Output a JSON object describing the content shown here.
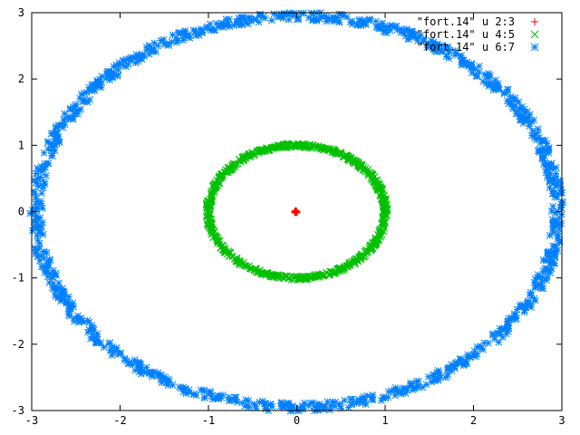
{
  "chart_data": {
    "type": "scatter",
    "title": "",
    "xlabel": "",
    "ylabel": "",
    "xlim": [
      -3,
      3
    ],
    "ylim": [
      -3,
      3
    ],
    "grid": false,
    "legend_position": "top-right",
    "x_ticks": [
      -3,
      -2,
      -1,
      0,
      1,
      2,
      3
    ],
    "y_ticks": [
      -3,
      -2,
      -1,
      0,
      1,
      2,
      3
    ],
    "x_tick_labels": [
      "-3",
      "-2",
      "-1",
      "0",
      "1",
      "2",
      "3"
    ],
    "y_tick_labels": [
      "-3",
      "-2",
      "-1",
      "0",
      "1",
      "2",
      "3"
    ],
    "series": [
      {
        "name": "\"fort.14\" u 2:3",
        "color": "#ff0000",
        "marker": "plus",
        "points": [
          [
            -0.02,
            0.0
          ],
          [
            -0.01,
            0.01
          ],
          [
            0.0,
            -0.01
          ],
          [
            -0.02,
            -0.01
          ],
          [
            -0.01,
            0.0
          ]
        ]
      },
      {
        "name": "\"fort.14\" u 4:5",
        "color": "#00c000",
        "marker": "cross",
        "shape": "ring",
        "ring": {
          "center": [
            0,
            0
          ],
          "radius": 1.0,
          "jitter": 0.03
        },
        "points": [
          [
            1.0,
            0.0
          ],
          [
            0.98,
            0.19
          ],
          [
            0.93,
            0.37
          ],
          [
            0.85,
            0.53
          ],
          [
            0.73,
            0.68
          ],
          [
            0.59,
            0.81
          ],
          [
            0.43,
            0.9
          ],
          [
            0.26,
            0.97
          ],
          [
            0.08,
            1.0
          ],
          [
            -0.1,
            0.99
          ],
          [
            -0.27,
            0.96
          ],
          [
            -0.44,
            0.9
          ],
          [
            -0.59,
            0.81
          ],
          [
            -0.73,
            0.68
          ],
          [
            -0.85,
            0.53
          ],
          [
            -0.93,
            0.37
          ],
          [
            -0.98,
            0.19
          ],
          [
            -1.0,
            0.0
          ],
          [
            -0.98,
            -0.19
          ],
          [
            -0.93,
            -0.37
          ],
          [
            -0.85,
            -0.53
          ],
          [
            -0.73,
            -0.68
          ],
          [
            -0.59,
            -0.81
          ],
          [
            -0.43,
            -0.9
          ],
          [
            -0.26,
            -0.97
          ],
          [
            -0.08,
            -1.0
          ],
          [
            0.1,
            -0.99
          ],
          [
            0.27,
            -0.96
          ],
          [
            0.44,
            -0.9
          ],
          [
            0.59,
            -0.81
          ],
          [
            0.73,
            -0.68
          ],
          [
            0.85,
            -0.53
          ],
          [
            0.93,
            -0.37
          ],
          [
            0.98,
            -0.19
          ]
        ]
      },
      {
        "name": "\"fort.14\" u 6:7",
        "color": "#0080ff",
        "marker": "star",
        "shape": "ring",
        "ring": {
          "center": [
            0,
            0
          ],
          "radius": 2.95,
          "jitter": 0.07
        },
        "points": [
          [
            2.95,
            0.0
          ],
          [
            2.91,
            0.48
          ],
          [
            2.8,
            0.93
          ],
          [
            2.61,
            1.37
          ],
          [
            2.35,
            1.78
          ],
          [
            2.02,
            2.15
          ],
          [
            1.64,
            2.45
          ],
          [
            1.22,
            2.69
          ],
          [
            0.76,
            2.85
          ],
          [
            0.28,
            2.94
          ],
          [
            -0.2,
            2.94
          ],
          [
            -0.68,
            2.87
          ],
          [
            -1.14,
            2.72
          ],
          [
            -1.57,
            2.5
          ],
          [
            -1.96,
            2.2
          ],
          [
            -2.3,
            1.85
          ],
          [
            -2.58,
            1.43
          ],
          [
            -2.78,
            0.99
          ],
          [
            -2.9,
            0.52
          ],
          [
            -2.95,
            0.02
          ],
          [
            -2.91,
            -0.48
          ],
          [
            -2.8,
            -0.93
          ],
          [
            -2.61,
            -1.37
          ],
          [
            -2.35,
            -1.78
          ],
          [
            -2.02,
            -2.15
          ],
          [
            -1.64,
            -2.45
          ],
          [
            -1.22,
            -2.69
          ],
          [
            -0.76,
            -2.85
          ],
          [
            -0.28,
            -2.94
          ],
          [
            0.2,
            -2.94
          ],
          [
            0.68,
            -2.87
          ],
          [
            1.14,
            -2.72
          ],
          [
            1.57,
            -2.5
          ],
          [
            1.96,
            -2.2
          ],
          [
            2.3,
            -1.85
          ],
          [
            2.58,
            -1.43
          ],
          [
            2.78,
            -0.99
          ],
          [
            2.9,
            -0.52
          ]
        ]
      }
    ]
  }
}
